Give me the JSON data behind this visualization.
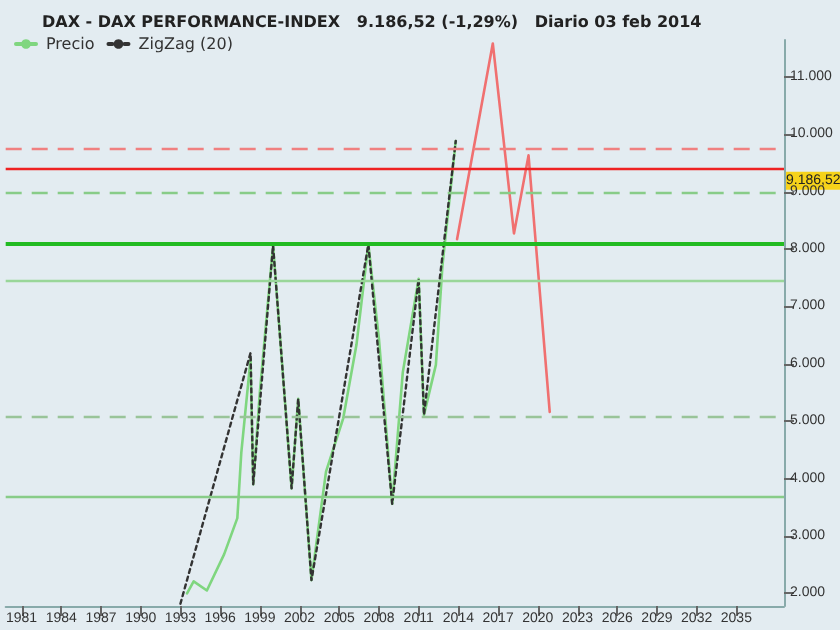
{
  "chart_data": {
    "type": "line",
    "title": "DAX - DAX PERFORMANCE-INDEX   9.186,52 (-1,29%)   Diario 03 feb 2014",
    "xlim": [
      1979.8,
      2038.6
    ],
    "xticks": [
      1981,
      1984,
      1987,
      1990,
      1993,
      1996,
      1999,
      2002,
      2005,
      2008,
      2011,
      2014,
      2017,
      2020,
      2023,
      2026,
      2029,
      2032,
      2035
    ],
    "ylim": [
      1780,
      11640
    ],
    "yticks": [
      {
        "value": 2000,
        "label": "2.000"
      },
      {
        "value": 3000,
        "label": "3.000"
      },
      {
        "value": 4000,
        "label": "4.000"
      },
      {
        "value": 5000,
        "label": "5.000"
      },
      {
        "value": 6000,
        "label": "6.000"
      },
      {
        "value": 7000,
        "label": "7.000"
      },
      {
        "value": 8000,
        "label": "8.000"
      },
      {
        "value": 9000,
        "label": "9.000"
      },
      {
        "value": 10000,
        "label": "10.000"
      },
      {
        "value": 11000,
        "label": "11.000"
      }
    ],
    "grid": false,
    "legend": "top left",
    "marker": "none",
    "series": [
      {
        "name": "Precio",
        "color": "#7fd67f",
        "line_style": "solid",
        "x": [
          1993.5,
          1994.0,
          1995.0,
          1996.3,
          1997.3,
          1997.6,
          1998.3,
          1998.5,
          1999.0,
          2000.0,
          2001.4,
          2001.9,
          2002.9,
          2004.0,
          2005.3,
          2006.3,
          2007.2,
          2008.0,
          2009.0,
          2009.8,
          2011.0,
          2011.4,
          2012.3,
          2012.8,
          2013.8
        ],
        "values": [
          2000,
          2210,
          2050,
          2680,
          3310,
          4450,
          6080,
          3900,
          5500,
          8060,
          3830,
          5390,
          2230,
          4120,
          5050,
          6330,
          8080,
          6430,
          3560,
          5850,
          7480,
          5110,
          5980,
          7720,
          9880
        ]
      },
      {
        "name": "ZigZag (20)",
        "color": "#333333",
        "line_style": "dotted",
        "x": [
          1993.0,
          1998.3,
          1998.5,
          2000.0,
          2001.4,
          2001.9,
          2002.9,
          2007.2,
          2009.0,
          2011.0,
          2011.4,
          2013.8
        ],
        "values": [
          1820,
          6190,
          3900,
          8060,
          3830,
          5390,
          2230,
          8080,
          3560,
          7480,
          5110,
          9880
        ]
      },
      {
        "color": "#f07070",
        "line_style": "solid",
        "x": [
          2013.9,
          2016.6,
          2018.2,
          2019.3,
          2020.9
        ],
        "values": [
          8170,
          11580,
          8270,
          9630,
          5160
        ]
      }
    ],
    "ref_lines": [
      {
        "axis": "y",
        "value": 8080,
        "color": "#22bb22",
        "line_style": "solid"
      },
      {
        "axis": "y",
        "value": 7450,
        "color": "#99d699",
        "line_style": "solid"
      },
      {
        "axis": "y",
        "value": 9410,
        "color": "#ee2222",
        "line_style": "solid"
      },
      {
        "axis": "y",
        "value": 9740,
        "color": "#f08080",
        "line_style": "dashed"
      },
      {
        "axis": "y",
        "value": 9000,
        "color": "#88cc88",
        "line_style": "dashed"
      },
      {
        "axis": "y",
        "value": 5080,
        "color": "#99c499",
        "line_style": "dashed"
      },
      {
        "axis": "y",
        "value": 3690,
        "color": "#88cc88",
        "line_style": "solid"
      }
    ],
    "annotations": [
      {
        "text": "9.186,52",
        "y": 9186.52
      }
    ]
  }
}
